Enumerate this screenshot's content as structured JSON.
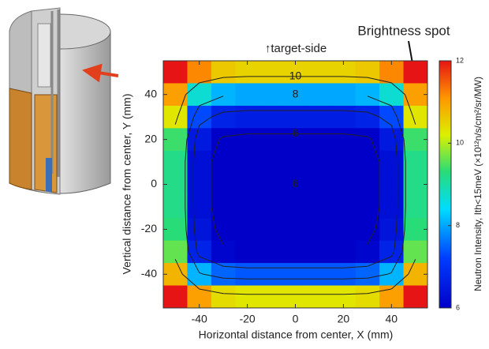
{
  "chart_data": {
    "type": "heatmap",
    "title": "↑target-side",
    "annotation": "Brightness spot",
    "x_label": "Horizontal distance from center, X (mm)",
    "y_label": "Vertical distance from center, Y (mm)",
    "colorbar_label": "Neutron Intensity, Ith<15meV (×10¹²n/s/cm²/sr/MW)",
    "xlim": [
      -55,
      55
    ],
    "ylim": [
      -55,
      55
    ],
    "xticks": [
      -40,
      -20,
      0,
      20,
      40
    ],
    "yticks": [
      -40,
      -20,
      0,
      20,
      40
    ],
    "colormap": "jet",
    "colorbar_lim": [
      6,
      12
    ],
    "colorbar_ticks": [
      6,
      8,
      10,
      12
    ],
    "contour_levels": [
      6,
      7,
      8,
      10
    ],
    "contour_labels": [
      10,
      8,
      6,
      6
    ],
    "z": [
      [
        12.4,
        11.2,
        10.6,
        10.5,
        10.5,
        10.5,
        10.5,
        10.5,
        10.6,
        11.2,
        12.4
      ],
      [
        11.0,
        8.7,
        8.1,
        8.0,
        8.0,
        8.0,
        8.0,
        8.0,
        8.1,
        8.7,
        11.0
      ],
      [
        10.3,
        7.3,
        6.7,
        6.6,
        6.6,
        6.6,
        6.6,
        6.6,
        6.7,
        7.3,
        10.3
      ],
      [
        9.4,
        6.5,
        5.9,
        5.8,
        5.8,
        5.8,
        5.8,
        5.8,
        5.9,
        6.5,
        9.4
      ],
      [
        9.2,
        6.3,
        5.7,
        5.6,
        5.6,
        5.6,
        5.6,
        5.6,
        5.7,
        6.3,
        9.2
      ],
      [
        9.2,
        6.3,
        5.7,
        5.6,
        5.6,
        5.6,
        5.6,
        5.6,
        5.7,
        6.3,
        9.2
      ],
      [
        9.2,
        6.3,
        5.7,
        5.6,
        5.6,
        5.6,
        5.6,
        5.6,
        5.7,
        6.3,
        9.2
      ],
      [
        9.3,
        6.4,
        5.8,
        5.7,
        5.7,
        5.7,
        5.7,
        5.7,
        5.8,
        6.4,
        9.3
      ],
      [
        9.6,
        6.7,
        6.1,
        6.0,
        6.0,
        6.0,
        6.0,
        6.0,
        6.1,
        6.7,
        9.6
      ],
      [
        10.8,
        8.1,
        7.5,
        7.4,
        7.4,
        7.4,
        7.4,
        7.4,
        7.5,
        8.1,
        10.8
      ],
      [
        12.3,
        11.0,
        10.4,
        10.3,
        10.3,
        10.3,
        10.3,
        10.3,
        10.4,
        11.0,
        12.3
      ]
    ]
  }
}
